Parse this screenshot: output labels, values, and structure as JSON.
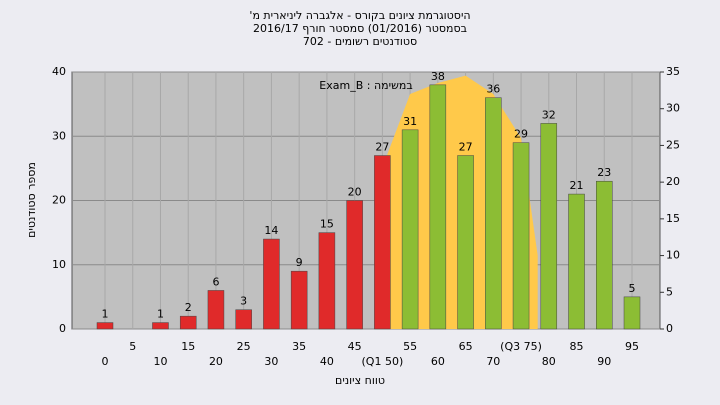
{
  "chart_data": {
    "type": "bar",
    "title": [
      "'היסטוגרמת ציונים בקורס - אלגברה ליניארית מ",
      "בסמסטר (01/2016) סמסטר חורף 2016/17",
      "סטודנטים רשומים - 702"
    ],
    "annotation": "Exam_B : במשימה",
    "x_label": "טווח ציונים",
    "y_label": "מספר סטודנטים",
    "categories": [
      "0",
      "5",
      "10",
      "15",
      "20",
      "25",
      "30",
      "35",
      "40",
      "45",
      "(Q1 50)",
      "55",
      "60",
      "65",
      "70",
      "(Q3 75)",
      "80",
      "85",
      "90",
      "95"
    ],
    "values": [
      1,
      null,
      1,
      2,
      6,
      3,
      14,
      9,
      15,
      20,
      27,
      31,
      38,
      27,
      36,
      29,
      32,
      21,
      23,
      5
    ],
    "colors": [
      "#e02a2a",
      "#e02a2a",
      "#e02a2a",
      "#e02a2a",
      "#e02a2a",
      "#e02a2a",
      "#e02a2a",
      "#e02a2a",
      "#e02a2a",
      "#e02a2a",
      "#e02a2a",
      "#8cbd34",
      "#8cbd34",
      "#8cbd34",
      "#8cbd34",
      "#8cbd34",
      "#8cbd34",
      "#8cbd34",
      "#8cbd34",
      "#8cbd34"
    ],
    "curve": {
      "axis": "y2",
      "color": "#ffc94a",
      "x": [
        50,
        55,
        60,
        65,
        70,
        75,
        78
      ],
      "values": [
        22,
        32,
        33.5,
        34.5,
        32,
        26,
        10
      ]
    },
    "ylim": [
      0,
      40
    ],
    "yticks": [
      0,
      10,
      20,
      30,
      40
    ],
    "y2lim": [
      0,
      35
    ],
    "y2ticks": [
      0,
      5,
      10,
      15,
      20,
      25,
      30,
      35
    ],
    "grid": true
  }
}
